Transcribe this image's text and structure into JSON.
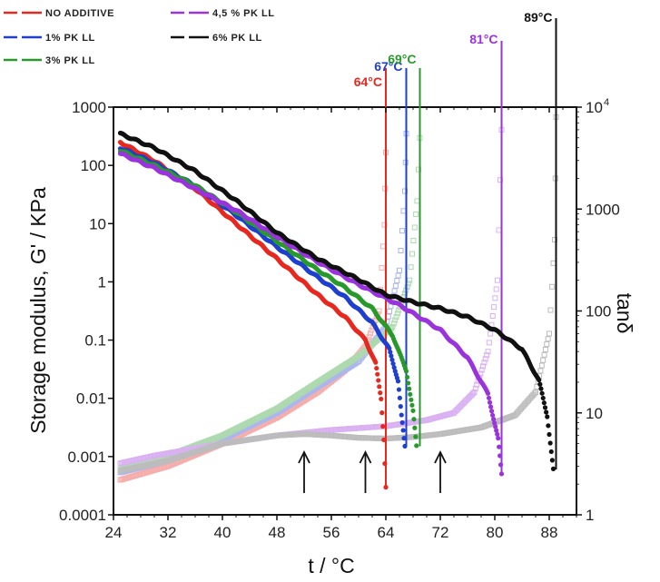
{
  "chart_data": {
    "type": "scatter",
    "xlabel": "t / °C",
    "ylabel_left": "Storage modulus, G' / KPa",
    "ylabel_right": "tanδ",
    "xlim": [
      24,
      92
    ],
    "ylim_left": [
      0.0001,
      1000
    ],
    "ylim_right": [
      1,
      10000
    ],
    "yscale": "log",
    "x_ticks": [
      "24",
      "32",
      "40",
      "48",
      "56",
      "64",
      "72",
      "80",
      "88"
    ],
    "y_left_ticks": [
      "1000",
      "100",
      "10",
      "1",
      "0.1",
      "0.01",
      "0.001",
      "0.0001"
    ],
    "y_right_ticks": [
      "1000",
      "100",
      "10",
      "1"
    ],
    "y_right_top_tick": "10",
    "y_right_top_exp": "4",
    "legend_placement": "above-plot",
    "series": [
      {
        "name": "NO ADDITIVE",
        "color": "#e8281e",
        "gel_temp": 64,
        "gel_label": "64°C",
        "storage_modulus": [
          [
            25,
            250
          ],
          [
            30,
            120
          ],
          [
            36,
            40
          ],
          [
            42,
            10
          ],
          [
            48,
            2.5
          ],
          [
            54,
            0.6
          ],
          [
            58,
            0.25
          ],
          [
            61,
            0.1
          ],
          [
            62.5,
            0.04
          ],
          [
            63.3,
            0.01
          ],
          [
            63.7,
            0.002
          ],
          [
            64,
            0.0003
          ]
        ],
        "tan_delta": [
          [
            25,
            2.2
          ],
          [
            32,
            3
          ],
          [
            40,
            5
          ],
          [
            48,
            9
          ],
          [
            54,
            16
          ],
          [
            58,
            26
          ],
          [
            61,
            45
          ],
          [
            63,
            100
          ],
          [
            63.8,
            700
          ],
          [
            64,
            3600
          ]
        ]
      },
      {
        "name": "1% PK LL",
        "color": "#1f3fcf",
        "gel_temp": 67,
        "gel_label": "67°C",
        "storage_modulus": [
          [
            25,
            200
          ],
          [
            30,
            110
          ],
          [
            36,
            45
          ],
          [
            42,
            14
          ],
          [
            48,
            4
          ],
          [
            54,
            1.2
          ],
          [
            58,
            0.55
          ],
          [
            62,
            0.2
          ],
          [
            64.5,
            0.07
          ],
          [
            65.8,
            0.02
          ],
          [
            66.3,
            0.005
          ],
          [
            66.8,
            0.0015
          ]
        ],
        "tan_delta": [
          [
            25,
            2.6
          ],
          [
            32,
            3.4
          ],
          [
            40,
            5.5
          ],
          [
            48,
            10
          ],
          [
            54,
            18
          ],
          [
            60,
            32
          ],
          [
            64,
            70
          ],
          [
            66,
            250
          ],
          [
            66.8,
            1500
          ],
          [
            67,
            5500
          ]
        ]
      },
      {
        "name": "3% PK LL",
        "color": "#279a2a",
        "gel_temp": 69,
        "gel_label": "69°C",
        "storage_modulus": [
          [
            25,
            180
          ],
          [
            30,
            100
          ],
          [
            36,
            45
          ],
          [
            42,
            16
          ],
          [
            48,
            5
          ],
          [
            54,
            1.6
          ],
          [
            58,
            0.8
          ],
          [
            62,
            0.35
          ],
          [
            65,
            0.12
          ],
          [
            67,
            0.03
          ],
          [
            68,
            0.006
          ],
          [
            68.5,
            0.0015
          ]
        ],
        "tan_delta": [
          [
            25,
            2.8
          ],
          [
            32,
            3.8
          ],
          [
            40,
            6
          ],
          [
            48,
            11
          ],
          [
            54,
            20
          ],
          [
            60,
            36
          ],
          [
            65,
            70
          ],
          [
            67.5,
            200
          ],
          [
            68.6,
            1200
          ],
          [
            69,
            5000
          ]
        ]
      },
      {
        "name": "4,5 % PK LL",
        "color": "#9a33dd",
        "gel_temp": 81,
        "gel_label": "81°C",
        "storage_modulus": [
          [
            25,
            160
          ],
          [
            30,
            90
          ],
          [
            36,
            40
          ],
          [
            42,
            17
          ],
          [
            48,
            6
          ],
          [
            54,
            2.2
          ],
          [
            60,
            0.9
          ],
          [
            66,
            0.4
          ],
          [
            72,
            0.15
          ],
          [
            76,
            0.05
          ],
          [
            79,
            0.012
          ],
          [
            80.5,
            0.002
          ],
          [
            81,
            0.0005
          ]
        ],
        "tan_delta": [
          [
            25,
            3.2
          ],
          [
            30,
            3.8
          ],
          [
            40,
            5
          ],
          [
            48,
            6
          ],
          [
            56,
            6.8
          ],
          [
            64,
            7.4
          ],
          [
            70,
            8.5
          ],
          [
            74,
            10
          ],
          [
            77,
            16
          ],
          [
            79,
            40
          ],
          [
            80.4,
            200
          ],
          [
            81,
            6000
          ]
        ]
      },
      {
        "name": "6% PK LL",
        "color": "#111111",
        "gel_temp": 89,
        "gel_label": "89°C",
        "storage_modulus": [
          [
            25,
            350
          ],
          [
            30,
            200
          ],
          [
            36,
            80
          ],
          [
            42,
            25
          ],
          [
            48,
            7
          ],
          [
            54,
            2.5
          ],
          [
            60,
            1.1
          ],
          [
            64,
            0.6
          ],
          [
            68,
            0.45
          ],
          [
            72,
            0.35
          ],
          [
            76,
            0.25
          ],
          [
            80,
            0.15
          ],
          [
            84,
            0.07
          ],
          [
            86.5,
            0.02
          ],
          [
            87.7,
            0.005
          ],
          [
            88.6,
            0.0006
          ]
        ],
        "tan_delta": [
          [
            25,
            2.7
          ],
          [
            32,
            3.4
          ],
          [
            40,
            5
          ],
          [
            48,
            6
          ],
          [
            52,
            6.2
          ],
          [
            56,
            6
          ],
          [
            60,
            5.7
          ],
          [
            64,
            5.6
          ],
          [
            68,
            5.8
          ],
          [
            72,
            6.2
          ],
          [
            78,
            7.2
          ],
          [
            83,
            9.5
          ],
          [
            86,
            16
          ],
          [
            88,
            60
          ],
          [
            88.8,
            500
          ],
          [
            89,
            8000
          ]
        ]
      }
    ],
    "arrows": [
      52,
      61,
      72
    ]
  }
}
